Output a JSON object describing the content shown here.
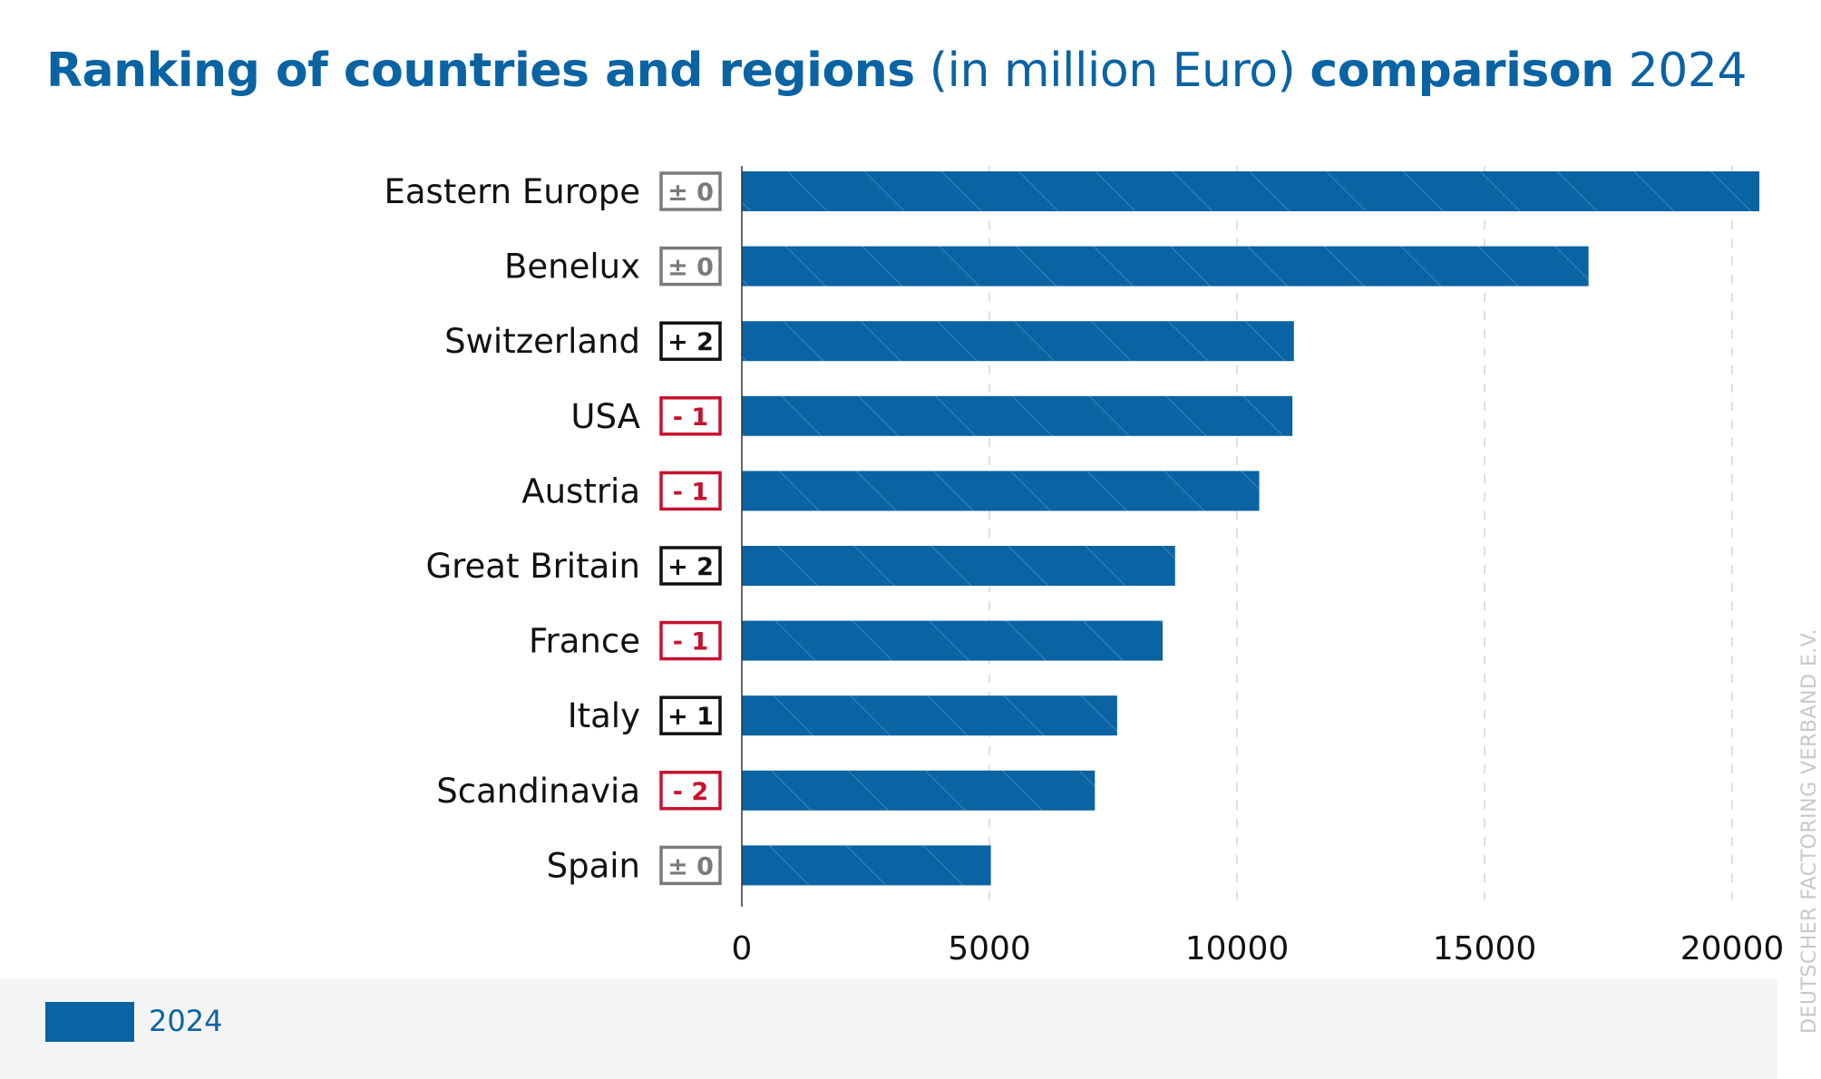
{
  "title": {
    "part1": "Ranking of countries and regions",
    "part2": "(in million Euro)",
    "part3": "comparison",
    "part4": "2024"
  },
  "colors": {
    "bar": "#0a63a3",
    "title": "#0a63a3",
    "badge_neutral": "#7a7a7a",
    "badge_up": "#111111",
    "badge_down": "#c8102e",
    "grid": "#d6d6d6",
    "axis": "#333333"
  },
  "chart_data": {
    "type": "bar",
    "orientation": "horizontal",
    "categories": [
      "Eastern Europe",
      "Benelux",
      "Switzerland",
      "USA",
      "Austria",
      "Great Britain",
      "France",
      "Italy",
      "Scandinavia",
      "Spain"
    ],
    "series": [
      {
        "name": "2024",
        "values": [
          20550,
          17100,
          11150,
          11120,
          10450,
          8750,
          8500,
          7580,
          7130,
          5030
        ]
      }
    ],
    "rank_change": [
      "± 0",
      "± 0",
      "+ 2",
      "- 1",
      "- 1",
      "+ 2",
      "- 1",
      "+ 1",
      "- 2",
      "± 0"
    ],
    "rank_change_kind": [
      "neutral",
      "neutral",
      "up",
      "down",
      "down",
      "up",
      "down",
      "up",
      "down",
      "neutral"
    ],
    "xlim": [
      0,
      21000
    ],
    "xticks": [
      0,
      5000,
      10000,
      15000,
      20000
    ],
    "grid": true,
    "legend": {
      "position": "bottom-left",
      "label": "2024"
    }
  },
  "watermark": "DEUTSCHER FACTORING VERBAND E.V."
}
